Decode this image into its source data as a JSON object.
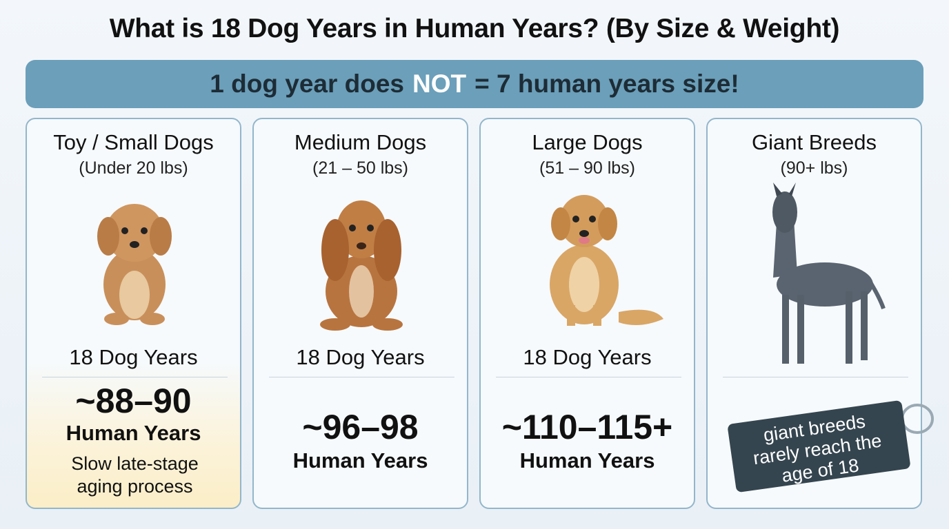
{
  "header": {
    "title": "What is 18 Dog Years in Human Years? (By Size & Weight)"
  },
  "banner": {
    "before": "1 dog year does",
    "emphasis": "NOT",
    "after": "= 7 human years size!"
  },
  "cards": [
    {
      "name": "Toy / Small Dogs",
      "weight": "(Under 20 lbs)",
      "dog_years": "18 Dog Years",
      "human_value": "~88–90",
      "human_label": "Human Years",
      "note": "Slow late-stage aging process"
    },
    {
      "name": "Medium Dogs",
      "weight": "(21 – 50 lbs)",
      "dog_years": "18 Dog Years",
      "human_value": "~96–98",
      "human_label": "Human Years"
    },
    {
      "name": "Large Dogs",
      "weight": "(51 – 90 lbs)",
      "dog_years": "18 Dog Years",
      "human_value": "~110–115+",
      "human_label": "Human Years"
    },
    {
      "name": "Giant Breeds",
      "weight": "(90+ lbs)",
      "tag": "giant breeds rarely reach the age of 18"
    }
  ]
}
